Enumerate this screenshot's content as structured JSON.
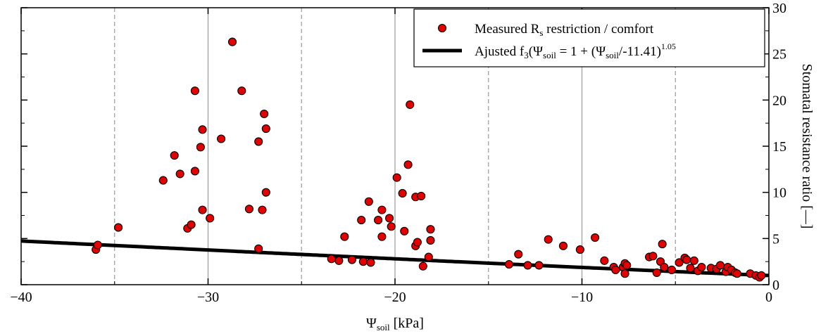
{
  "chart_data": {
    "type": "scatter",
    "title": "",
    "xlim": [
      -40,
      0
    ],
    "ylim": [
      0,
      30
    ],
    "x_ticks": [
      -40,
      -30,
      -20,
      -10,
      0
    ],
    "y_ticks": [
      0,
      5,
      10,
      15,
      20,
      25,
      30
    ],
    "x_tick_labels": [
      "−40",
      "−30",
      "−20",
      "−10",
      "0"
    ],
    "y_tick_labels": [
      "0",
      "5",
      "10",
      "15",
      "20",
      "25",
      "30"
    ],
    "xlabel": {
      "main": "Ψ",
      "sub": "soil",
      "rest": " [kPa]"
    },
    "ylabel": "Stomatal resistance ratio [—]",
    "grid": {
      "solid_x": [
        -30,
        -20,
        -10
      ],
      "dashed_x": [
        -35,
        -25,
        -15,
        -5
      ]
    },
    "legend": {
      "placement": "top-right",
      "items": [
        {
          "kind": "marker",
          "label_main": "Measured R",
          "label_sub": "s",
          "label_rest": "  restriction / comfort"
        },
        {
          "kind": "line",
          "parts": [
            {
              "t": "Ajusted f"
            },
            {
              "t": "3",
              "sub": true
            },
            {
              "t": "(Ψ"
            },
            {
              "t": "soil",
              "sub": true
            },
            {
              "t": " = 1 + (Ψ"
            },
            {
              "t": "soil",
              "sub": true
            },
            {
              "t": "/-11.41)"
            },
            {
              "t": "1.05",
              "sup": true
            }
          ]
        }
      ]
    },
    "colors": {
      "marker_fill": "#e30000",
      "marker_stroke": "#000000",
      "fit_line": "#000000"
    },
    "fit": {
      "a": -11.41,
      "b": 1.05,
      "x_range": [
        -40,
        0
      ]
    },
    "series": [
      {
        "name": "Measured Rs restriction / comfort",
        "points": [
          [
            -36.0,
            3.8
          ],
          [
            -35.9,
            4.3
          ],
          [
            -34.8,
            6.2
          ],
          [
            -32.4,
            11.3
          ],
          [
            -31.8,
            14.0
          ],
          [
            -31.5,
            12.0
          ],
          [
            -31.1,
            6.1
          ],
          [
            -30.9,
            6.5
          ],
          [
            -30.7,
            21.0
          ],
          [
            -30.7,
            12.3
          ],
          [
            -30.4,
            14.9
          ],
          [
            -30.3,
            16.8
          ],
          [
            -30.3,
            8.1
          ],
          [
            -29.9,
            7.2
          ],
          [
            -29.3,
            15.8
          ],
          [
            -28.7,
            26.3
          ],
          [
            -28.2,
            21.0
          ],
          [
            -27.8,
            8.2
          ],
          [
            -27.3,
            15.5
          ],
          [
            -27.3,
            3.9
          ],
          [
            -27.1,
            8.1
          ],
          [
            -27.0,
            18.5
          ],
          [
            -26.9,
            16.9
          ],
          [
            -26.9,
            10.0
          ],
          [
            -23.4,
            2.8
          ],
          [
            -23.0,
            2.6
          ],
          [
            -22.7,
            5.2
          ],
          [
            -22.3,
            2.7
          ],
          [
            -21.8,
            7.0
          ],
          [
            -21.7,
            2.5
          ],
          [
            -21.4,
            9.0
          ],
          [
            -21.3,
            2.4
          ],
          [
            -20.9,
            7.0
          ],
          [
            -20.7,
            8.1
          ],
          [
            -20.7,
            5.2
          ],
          [
            -20.3,
            7.2
          ],
          [
            -20.2,
            6.3
          ],
          [
            -19.9,
            11.6
          ],
          [
            -19.6,
            9.9
          ],
          [
            -19.5,
            5.8
          ],
          [
            -19.3,
            13.0
          ],
          [
            -19.2,
            19.5
          ],
          [
            -18.9,
            9.5
          ],
          [
            -18.9,
            4.2
          ],
          [
            -18.8,
            4.6
          ],
          [
            -18.6,
            9.6
          ],
          [
            -18.5,
            2.0
          ],
          [
            -18.2,
            3.0
          ],
          [
            -18.1,
            6.0
          ],
          [
            -18.1,
            4.8
          ],
          [
            -13.9,
            2.2
          ],
          [
            -13.4,
            3.3
          ],
          [
            -12.9,
            2.1
          ],
          [
            -12.3,
            2.1
          ],
          [
            -11.8,
            4.9
          ],
          [
            -11.0,
            4.2
          ],
          [
            -10.1,
            3.8
          ],
          [
            -9.3,
            5.1
          ],
          [
            -8.8,
            2.6
          ],
          [
            -8.3,
            1.9
          ],
          [
            -8.2,
            1.6
          ],
          [
            -7.8,
            1.9
          ],
          [
            -7.7,
            2.3
          ],
          [
            -7.7,
            1.2
          ],
          [
            -7.6,
            2.1
          ],
          [
            -6.4,
            3.0
          ],
          [
            -6.2,
            3.1
          ],
          [
            -6.0,
            1.3
          ],
          [
            -5.8,
            2.5
          ],
          [
            -5.7,
            4.4
          ],
          [
            -5.6,
            1.9
          ],
          [
            -5.2,
            1.6
          ],
          [
            -4.8,
            2.4
          ],
          [
            -4.5,
            2.9
          ],
          [
            -4.4,
            2.7
          ],
          [
            -4.2,
            1.8
          ],
          [
            -4.0,
            2.6
          ],
          [
            -3.8,
            1.5
          ],
          [
            -3.6,
            1.9
          ],
          [
            -3.1,
            1.8
          ],
          [
            -2.8,
            1.7
          ],
          [
            -2.6,
            2.1
          ],
          [
            -2.3,
            1.4
          ],
          [
            -2.2,
            1.9
          ],
          [
            -2.0,
            1.6
          ],
          [
            -1.8,
            1.3
          ],
          [
            -1.7,
            1.2
          ],
          [
            -1.0,
            1.2
          ],
          [
            -0.7,
            1.0
          ],
          [
            -0.5,
            0.8
          ],
          [
            -0.4,
            1.0
          ]
        ]
      }
    ]
  }
}
